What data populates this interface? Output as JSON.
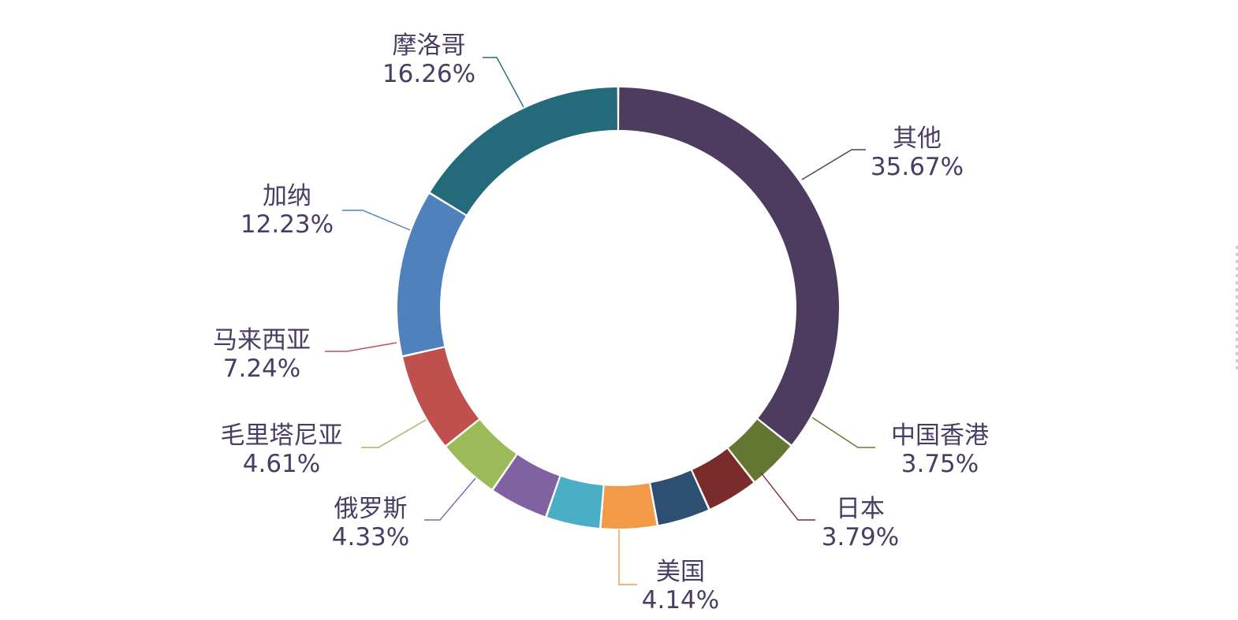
{
  "chart_data": {
    "type": "pie",
    "variant": "donut",
    "title": "",
    "slices": [
      {
        "name": "其他",
        "value": 35.67,
        "label": "35.67%",
        "color": "#4e3b60"
      },
      {
        "name": "中国香港",
        "value": 3.75,
        "label": "3.75%",
        "color": "#647732"
      },
      {
        "name": "日本",
        "value": 3.79,
        "label": "3.79%",
        "color": "#7a2c2a"
      },
      {
        "name": "",
        "value": 3.9,
        "label": "",
        "color": "#2d4f72"
      },
      {
        "name": "美国",
        "value": 4.14,
        "label": "4.14%",
        "color": "#f39a48"
      },
      {
        "name": "",
        "value": 4.0,
        "label": "",
        "color": "#4aaec6"
      },
      {
        "name": "俄罗斯",
        "value": 4.33,
        "label": "4.33%",
        "color": "#8062a2"
      },
      {
        "name": "毛里塔尼亚",
        "value": 4.61,
        "label": "4.61%",
        "color": "#9bbb59"
      },
      {
        "name": "马来西亚",
        "value": 7.24,
        "label": "7.24%",
        "color": "#c0504d"
      },
      {
        "name": "加纳",
        "value": 12.23,
        "label": "12.23%",
        "color": "#4f81bd"
      },
      {
        "name": "摩洛哥",
        "value": 16.26,
        "label": "16.26%",
        "color": "#246a7b"
      }
    ],
    "label_color": "#4a3d63",
    "legend": "none"
  }
}
